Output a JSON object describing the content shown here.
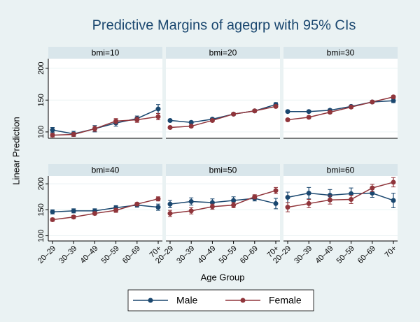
{
  "chart_data": {
    "type": "line",
    "title": "Predictive Margins of agegrp with 95% CIs",
    "x_label": "Age Group",
    "y_label": "Linear Prediction",
    "categories": [
      "20–29",
      "30–39",
      "40–49",
      "50–59",
      "60–69",
      "70+"
    ],
    "ylim": [
      90,
      215
    ],
    "yticks": [
      100,
      150,
      200
    ],
    "grid": true,
    "legend": "bottom",
    "series": [
      {
        "name": "Male",
        "color": "#1a476f"
      },
      {
        "name": "Female",
        "color": "#90353b"
      }
    ],
    "panels": [
      {
        "title": "bmi=10",
        "series": [
          {
            "values": [
              103,
              97,
              105,
              114,
              121,
              136
            ],
            "errors": [
              4,
              4,
              5,
              5,
              4,
              7
            ]
          },
          {
            "values": [
              95,
              96,
              105,
              117,
              119,
              124
            ],
            "errors": [
              3,
              3,
              4,
              4,
              4,
              5
            ]
          }
        ]
      },
      {
        "title": "bmi=20",
        "series": [
          {
            "values": [
              118,
              115,
              120,
              128,
              133,
              143
            ],
            "errors": [
              2,
              2,
              2,
              2,
              2,
              3
            ]
          },
          {
            "values": [
              107,
              109,
              118,
              128,
              133,
              140
            ],
            "errors": [
              2,
              2,
              2,
              2,
              2,
              2
            ]
          }
        ]
      },
      {
        "title": "bmi=30",
        "series": [
          {
            "values": [
              132,
              132,
              134,
              140,
              147,
              149
            ],
            "errors": [
              2,
              2,
              2,
              2,
              2,
              3
            ]
          },
          {
            "values": [
              119,
              123,
              131,
              139,
              147,
              155
            ],
            "errors": [
              2,
              2,
              2,
              2,
              2,
              2
            ]
          }
        ]
      },
      {
        "title": "bmi=40",
        "series": [
          {
            "values": [
              146,
              148,
              148,
              154,
              159,
              155
            ],
            "errors": [
              4,
              4,
              4,
              4,
              4,
              6
            ]
          },
          {
            "values": [
              131,
              136,
              143,
              149,
              161,
              171
            ],
            "errors": [
              3,
              3,
              3,
              4,
              3,
              4
            ]
          }
        ]
      },
      {
        "title": "bmi=50",
        "series": [
          {
            "values": [
              161,
              166,
              164,
              168,
              172,
              162
            ],
            "errors": [
              7,
              7,
              7,
              7,
              5,
              10
            ]
          },
          {
            "values": [
              143,
              148,
              156,
              159,
              175,
              187
            ],
            "errors": [
              6,
              6,
              5,
              5,
              4,
              6
            ]
          }
        ]
      },
      {
        "title": "bmi=60",
        "series": [
          {
            "values": [
              174,
              182,
              178,
              181,
              182,
              168
            ],
            "errors": [
              10,
              11,
              11,
              11,
              8,
              14
            ]
          },
          {
            "values": [
              155,
              162,
              169,
              170,
              192,
              203
            ],
            "errors": [
              9,
              8,
              8,
              8,
              7,
              9
            ]
          }
        ]
      }
    ]
  }
}
